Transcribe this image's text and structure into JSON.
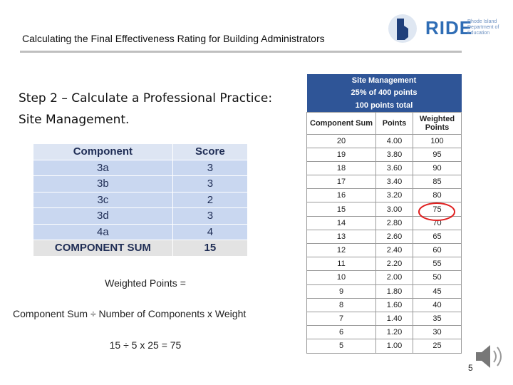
{
  "header": {
    "title": "Calculating the Final Effectiveness Rating for Building Administrators",
    "logo": {
      "name": "RIDE",
      "subtitle": "Rhode Island Department of Education"
    }
  },
  "heading": {
    "lines": [
      "Step 2 – Calculate a Professional Practice:",
      "Site Management."
    ]
  },
  "score_table": {
    "columns": [
      "Component",
      "Score"
    ],
    "rows": [
      [
        "3a",
        "3"
      ],
      [
        "3b",
        "3"
      ],
      [
        "3c",
        "2"
      ],
      [
        "3d",
        "3"
      ],
      [
        "4a",
        "4"
      ],
      [
        "COMPONENT SUM",
        "15"
      ]
    ]
  },
  "formula": {
    "label": "Weighted Points =",
    "expression": "Component Sum ÷ Number of Components x Weight",
    "example": "15 ÷ 5 x 25 = 75"
  },
  "rating_table": {
    "title_lines": [
      "Site Management",
      "25% of 400 points",
      "100 points total"
    ],
    "columns": [
      "Component Sum",
      "Points",
      "Weighted Points"
    ],
    "rows": [
      [
        "20",
        "4.00",
        "100"
      ],
      [
        "19",
        "3.80",
        "95"
      ],
      [
        "18",
        "3.60",
        "90"
      ],
      [
        "17",
        "3.40",
        "85"
      ],
      [
        "16",
        "3.20",
        "80"
      ],
      [
        "15",
        "3.00",
        "75"
      ],
      [
        "14",
        "2.80",
        "70"
      ],
      [
        "13",
        "2.60",
        "65"
      ],
      [
        "12",
        "2.40",
        "60"
      ],
      [
        "11",
        "2.20",
        "55"
      ],
      [
        "10",
        "2.00",
        "50"
      ],
      [
        "9",
        "1.80",
        "45"
      ],
      [
        "8",
        "1.60",
        "40"
      ],
      [
        "7",
        "1.40",
        "35"
      ],
      [
        "6",
        "1.20",
        "30"
      ],
      [
        "5",
        "1.00",
        "25"
      ]
    ]
  },
  "page_number": "5"
}
